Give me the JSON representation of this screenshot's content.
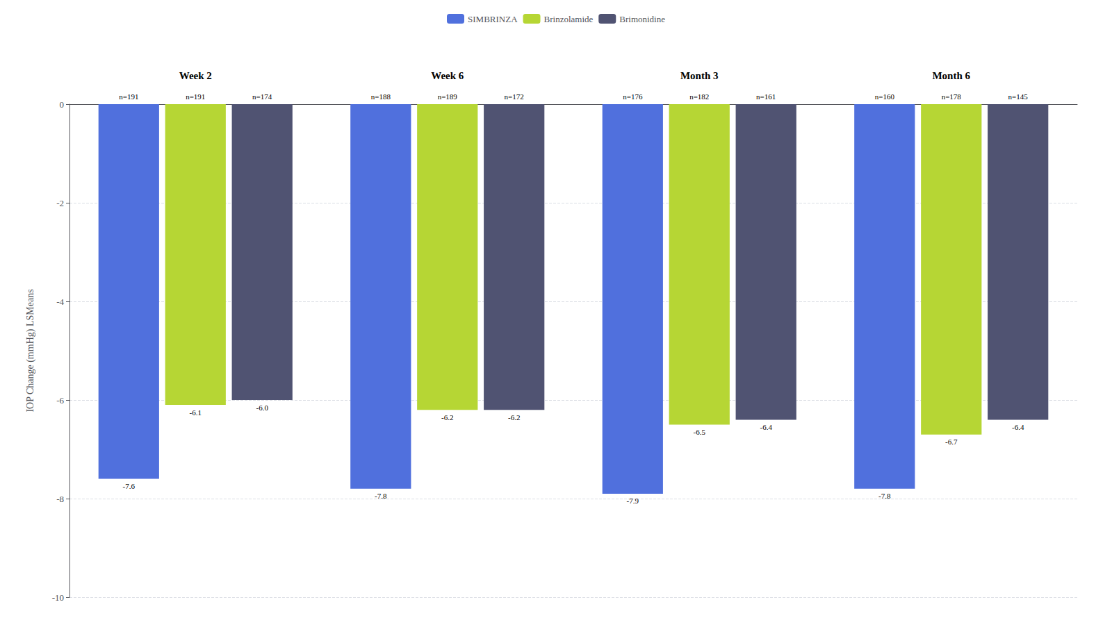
{
  "chart_data": {
    "type": "bar",
    "ylabel": "IOP Change (mmHg) LSMeans",
    "categories": [
      "Week 2",
      "Week 6",
      "Month 3",
      "Month 6"
    ],
    "series": [
      {
        "name": "SIMBRINZA",
        "values": [
          -7.6,
          -7.8,
          -7.9,
          -7.8
        ],
        "n_labels": [
          "n=191",
          "n=188",
          "n=176",
          "n=160"
        ]
      },
      {
        "name": "Brinzolamide",
        "values": [
          -6.1,
          -6.2,
          -6.5,
          -6.7
        ],
        "n_labels": [
          "n=191",
          "n=189",
          "n=182",
          "n=178"
        ]
      },
      {
        "name": "Brimonidine",
        "values": [
          -6.0,
          -6.2,
          -6.4,
          -6.4
        ],
        "value_labels": [
          "-6.0",
          "-6.2",
          "-6.4",
          "-6.4"
        ],
        "n_labels": [
          "n=174",
          "n=172",
          "n=161",
          "n=145"
        ]
      }
    ],
    "ylim": [
      -10,
      0
    ],
    "yticks": [
      0,
      -2,
      -4,
      -6,
      -8,
      -10
    ],
    "grid": true,
    "data_labels": true,
    "legend": "top"
  }
}
